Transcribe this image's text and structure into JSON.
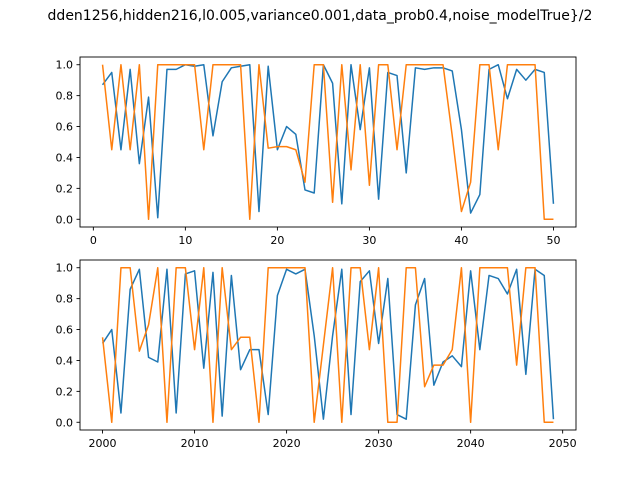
{
  "figure": {
    "title": "dden1256,hidden216,l0.005,variance0.001,data_prob0.4,noise_modelTrue}/2"
  },
  "chart_data": [
    {
      "type": "line",
      "title": "",
      "xlabel": "",
      "ylabel": "",
      "xlim": [
        -1.45,
        52.45
      ],
      "ylim": [
        -0.05,
        1.05
      ],
      "xticks": [
        0,
        10,
        20,
        30,
        40,
        50
      ],
      "yticks": [
        0.0,
        0.2,
        0.4,
        0.6,
        0.8,
        1.0
      ],
      "x": [
        1,
        2,
        3,
        4,
        5,
        6,
        7,
        8,
        9,
        10,
        11,
        12,
        13,
        14,
        15,
        16,
        17,
        18,
        19,
        20,
        21,
        22,
        23,
        24,
        25,
        26,
        27,
        28,
        29,
        30,
        31,
        32,
        33,
        34,
        35,
        36,
        37,
        38,
        39,
        40,
        41,
        42,
        43,
        44,
        45,
        46,
        47,
        48,
        49,
        50
      ],
      "series": [
        {
          "color": "#1f77b4",
          "values": [
            0.87,
            0.95,
            0.45,
            0.97,
            0.36,
            0.79,
            0.01,
            0.97,
            0.97,
            1.0,
            0.99,
            1.0,
            0.54,
            0.89,
            0.98,
            0.99,
            1.0,
            0.05,
            0.99,
            0.45,
            0.6,
            0.55,
            0.19,
            0.17,
            1.0,
            0.88,
            0.1,
            1.0,
            0.58,
            0.98,
            0.13,
            0.95,
            0.93,
            0.3,
            0.98,
            0.97,
            0.98,
            0.98,
            0.96,
            0.58,
            0.04,
            0.16,
            0.97,
            1.0,
            0.78,
            0.97,
            0.9,
            0.97,
            0.95,
            0.1
          ]
        },
        {
          "color": "#ff7f0e",
          "values": [
            1.0,
            0.45,
            1.0,
            0.45,
            1.0,
            0.0,
            1.0,
            1.0,
            1.0,
            1.0,
            1.0,
            0.45,
            1.0,
            1.0,
            1.0,
            1.0,
            0.0,
            1.0,
            0.46,
            0.47,
            0.47,
            0.45,
            0.24,
            1.0,
            1.0,
            0.11,
            1.0,
            0.32,
            1.0,
            0.22,
            1.0,
            1.0,
            0.45,
            1.0,
            1.0,
            1.0,
            1.0,
            1.0,
            0.54,
            0.05,
            0.24,
            1.0,
            1.0,
            0.45,
            1.0,
            1.0,
            1.0,
            1.0,
            0.0,
            0.0
          ]
        }
      ]
    },
    {
      "type": "line",
      "title": "",
      "xlabel": "",
      "ylabel": "",
      "xlim": [
        1997.55,
        2051.45
      ],
      "ylim": [
        -0.05,
        1.05
      ],
      "xticks": [
        2000,
        2010,
        2020,
        2030,
        2040,
        2050
      ],
      "yticks": [
        0.0,
        0.2,
        0.4,
        0.6,
        0.8,
        1.0
      ],
      "x": [
        2000,
        2001,
        2002,
        2003,
        2004,
        2005,
        2006,
        2007,
        2008,
        2009,
        2010,
        2011,
        2012,
        2013,
        2014,
        2015,
        2016,
        2017,
        2018,
        2019,
        2020,
        2021,
        2022,
        2023,
        2024,
        2025,
        2026,
        2027,
        2028,
        2029,
        2030,
        2031,
        2032,
        2033,
        2034,
        2035,
        2036,
        2037,
        2038,
        2039,
        2040,
        2041,
        2042,
        2043,
        2044,
        2045,
        2046,
        2047,
        2048,
        2049
      ],
      "series": [
        {
          "color": "#1f77b4",
          "values": [
            0.51,
            0.6,
            0.06,
            0.86,
            0.99,
            0.42,
            0.39,
            0.99,
            0.06,
            0.96,
            0.98,
            0.35,
            0.97,
            0.04,
            0.95,
            0.34,
            0.47,
            0.47,
            0.05,
            0.82,
            0.99,
            0.96,
            0.99,
            0.56,
            0.02,
            0.56,
            0.99,
            0.05,
            0.91,
            0.98,
            0.51,
            0.93,
            0.05,
            0.02,
            0.76,
            0.93,
            0.24,
            0.39,
            0.43,
            0.36,
            0.98,
            0.47,
            0.95,
            0.93,
            0.83,
            0.99,
            0.31,
            0.99,
            0.95,
            0.02
          ]
        },
        {
          "color": "#ff7f0e",
          "values": [
            0.55,
            0.0,
            1.0,
            1.0,
            0.46,
            0.63,
            1.0,
            0.0,
            1.0,
            1.0,
            0.47,
            1.0,
            0.0,
            1.0,
            0.47,
            0.55,
            0.55,
            0.0,
            1.0,
            1.0,
            1.0,
            1.0,
            1.0,
            0.0,
            0.5,
            1.0,
            0.0,
            1.0,
            1.0,
            0.47,
            1.0,
            0.0,
            0.0,
            1.0,
            1.0,
            0.23,
            0.37,
            0.37,
            0.47,
            1.0,
            0.0,
            1.0,
            1.0,
            1.0,
            1.0,
            0.37,
            1.0,
            1.0,
            0.0,
            0.0
          ]
        }
      ]
    }
  ]
}
